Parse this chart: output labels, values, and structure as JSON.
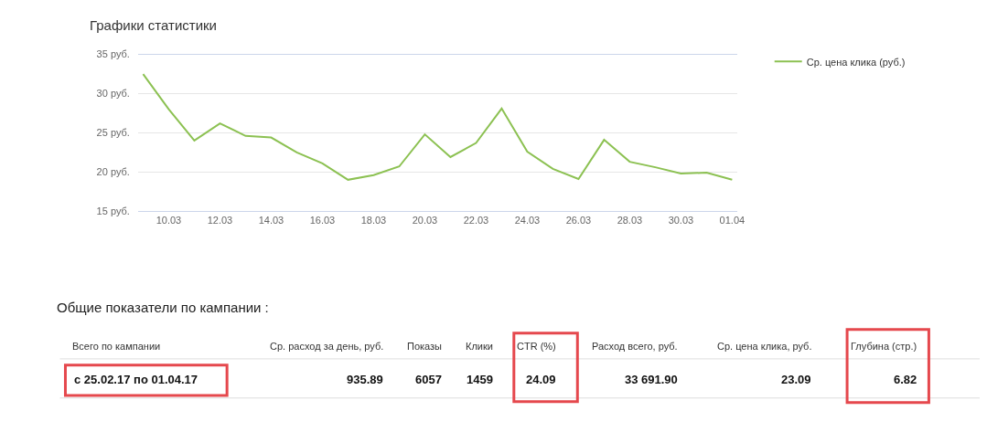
{
  "chart_data": [
    {
      "type": "line",
      "title": "Графики статистики",
      "categories": [
        null,
        "10.03",
        null,
        "12.03",
        null,
        "14.03",
        null,
        "16.03",
        null,
        "18.03",
        null,
        "20.03",
        null,
        "22.03",
        null,
        "24.03",
        null,
        "26.03",
        null,
        "28.03",
        null,
        "30.03",
        null,
        "01.04"
      ],
      "series": [
        {
          "name": "Ср. цена клика (руб.)",
          "color": "#8cc152",
          "values": [
            32.5,
            28.0,
            24.0,
            26.2,
            24.6,
            24.4,
            22.5,
            21.1,
            19.0,
            19.6,
            20.7,
            24.8,
            21.9,
            23.7,
            28.1,
            22.6,
            20.4,
            19.1,
            24.1,
            21.3,
            20.6,
            19.8,
            19.9,
            19.0
          ]
        }
      ],
      "ylim": [
        15,
        35
      ],
      "yticks": [
        {
          "value": 15,
          "label": "15 руб."
        },
        {
          "value": 20,
          "label": "20 руб."
        },
        {
          "value": 25,
          "label": "25 руб."
        },
        {
          "value": 30,
          "label": "30 руб."
        },
        {
          "value": 35,
          "label": "35 руб."
        }
      ],
      "grid": "y",
      "legend": "top right",
      "marker": "none",
      "line_style": "solid"
    },
    {
      "type": "other",
      "title": "Общие показатели по кампании :",
      "categories": [
        "Всего по кампании",
        "Ср. расход за день, руб.",
        "Показы",
        "Клики",
        "CTR (%)",
        "Расход всего, руб.",
        "Ср. цена клика, руб.",
        "Глубина (стр.)"
      ],
      "value_labels": [
        "с 25.02.17 по 01.04.17",
        "935.89",
        "6057",
        "1459",
        "24.09",
        "33 691.90",
        "23.09",
        "6.82"
      ],
      "colors": [
        "#e5484d",
        null,
        null,
        null,
        "#e5484d",
        null,
        null,
        "#e5484d"
      ]
    }
  ]
}
